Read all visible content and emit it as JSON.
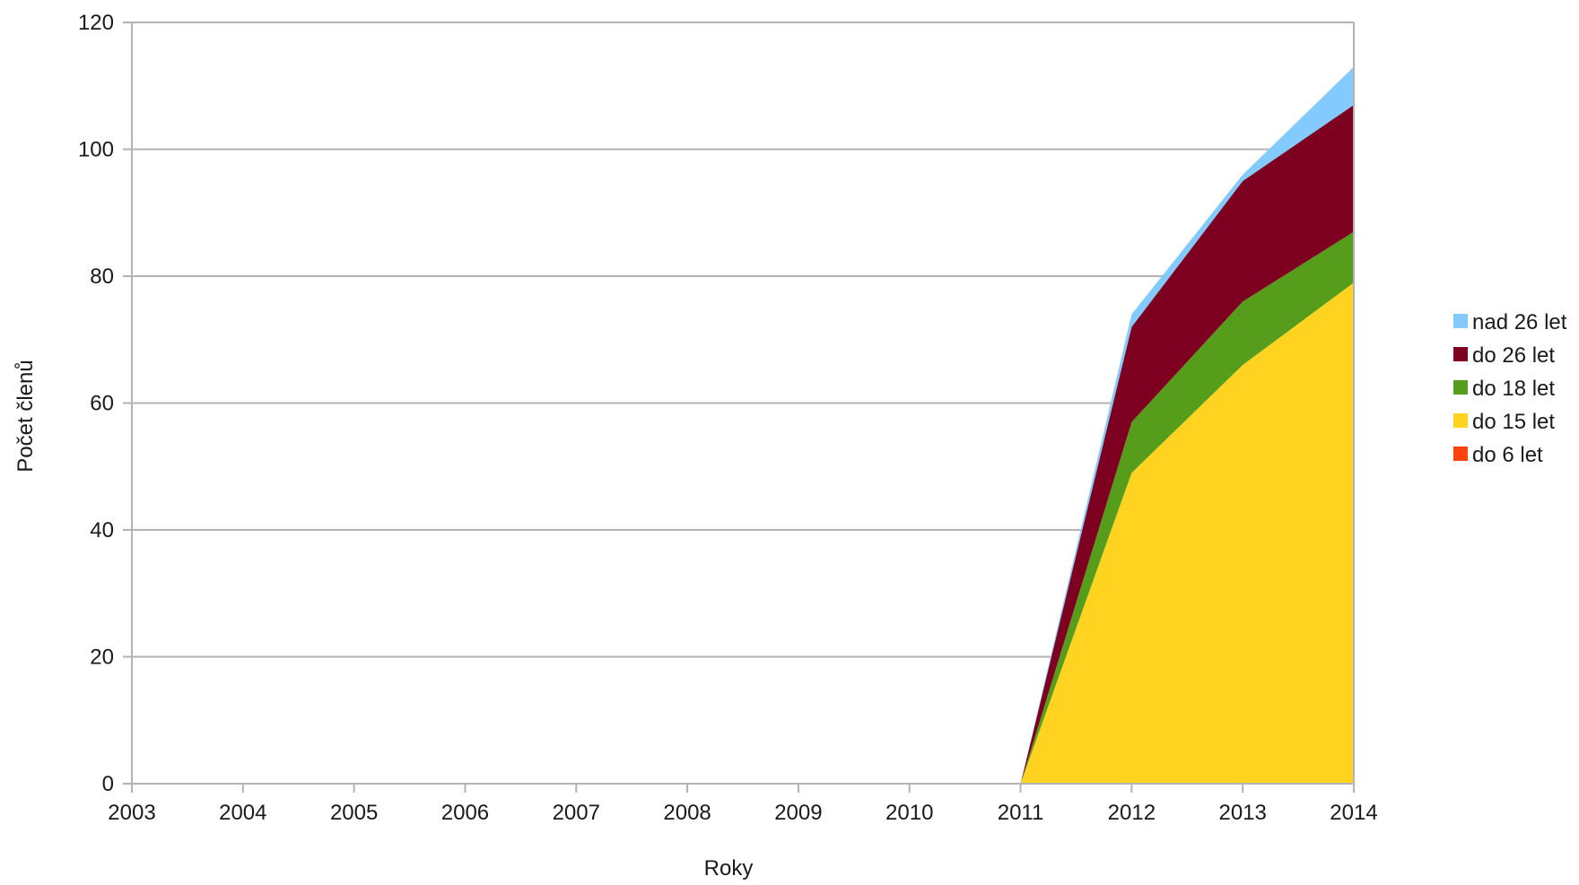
{
  "chart_data": {
    "type": "area",
    "stacked": true,
    "xlabel": "Roky",
    "ylabel": "Počet členů",
    "x": [
      "2003",
      "2004",
      "2005",
      "2006",
      "2007",
      "2008",
      "2009",
      "2010",
      "2011",
      "2012",
      "2013",
      "2014"
    ],
    "ylim": [
      0,
      120
    ],
    "yticks": [
      "0",
      "20",
      "40",
      "60",
      "80",
      "100",
      "120"
    ],
    "grid": "horizontal",
    "legend_position": "right",
    "series": [
      {
        "name": "do 6 let",
        "color": "#ff420e",
        "values": [
          0,
          0,
          0,
          0,
          0,
          0,
          0,
          0,
          0,
          0,
          0,
          0
        ]
      },
      {
        "name": "do 15 let",
        "color": "#ffd320",
        "values": [
          0,
          0,
          0,
          0,
          0,
          0,
          0,
          0,
          0,
          49,
          66,
          79
        ]
      },
      {
        "name": "do 18 let",
        "color": "#579d1c",
        "values": [
          0,
          0,
          0,
          0,
          0,
          0,
          0,
          0,
          0,
          8,
          10,
          8
        ]
      },
      {
        "name": "do 26 let",
        "color": "#7e0021",
        "values": [
          0,
          0,
          0,
          0,
          0,
          0,
          0,
          0,
          0,
          15,
          19,
          20
        ]
      },
      {
        "name": "nad 26 let",
        "color": "#83caff",
        "values": [
          0,
          0,
          0,
          0,
          0,
          0,
          0,
          0,
          0,
          2,
          1,
          6
        ]
      }
    ],
    "legend_order": [
      "nad 26 let",
      "do 26 let",
      "do 18 let",
      "do 15 let",
      "do 6 let"
    ]
  }
}
